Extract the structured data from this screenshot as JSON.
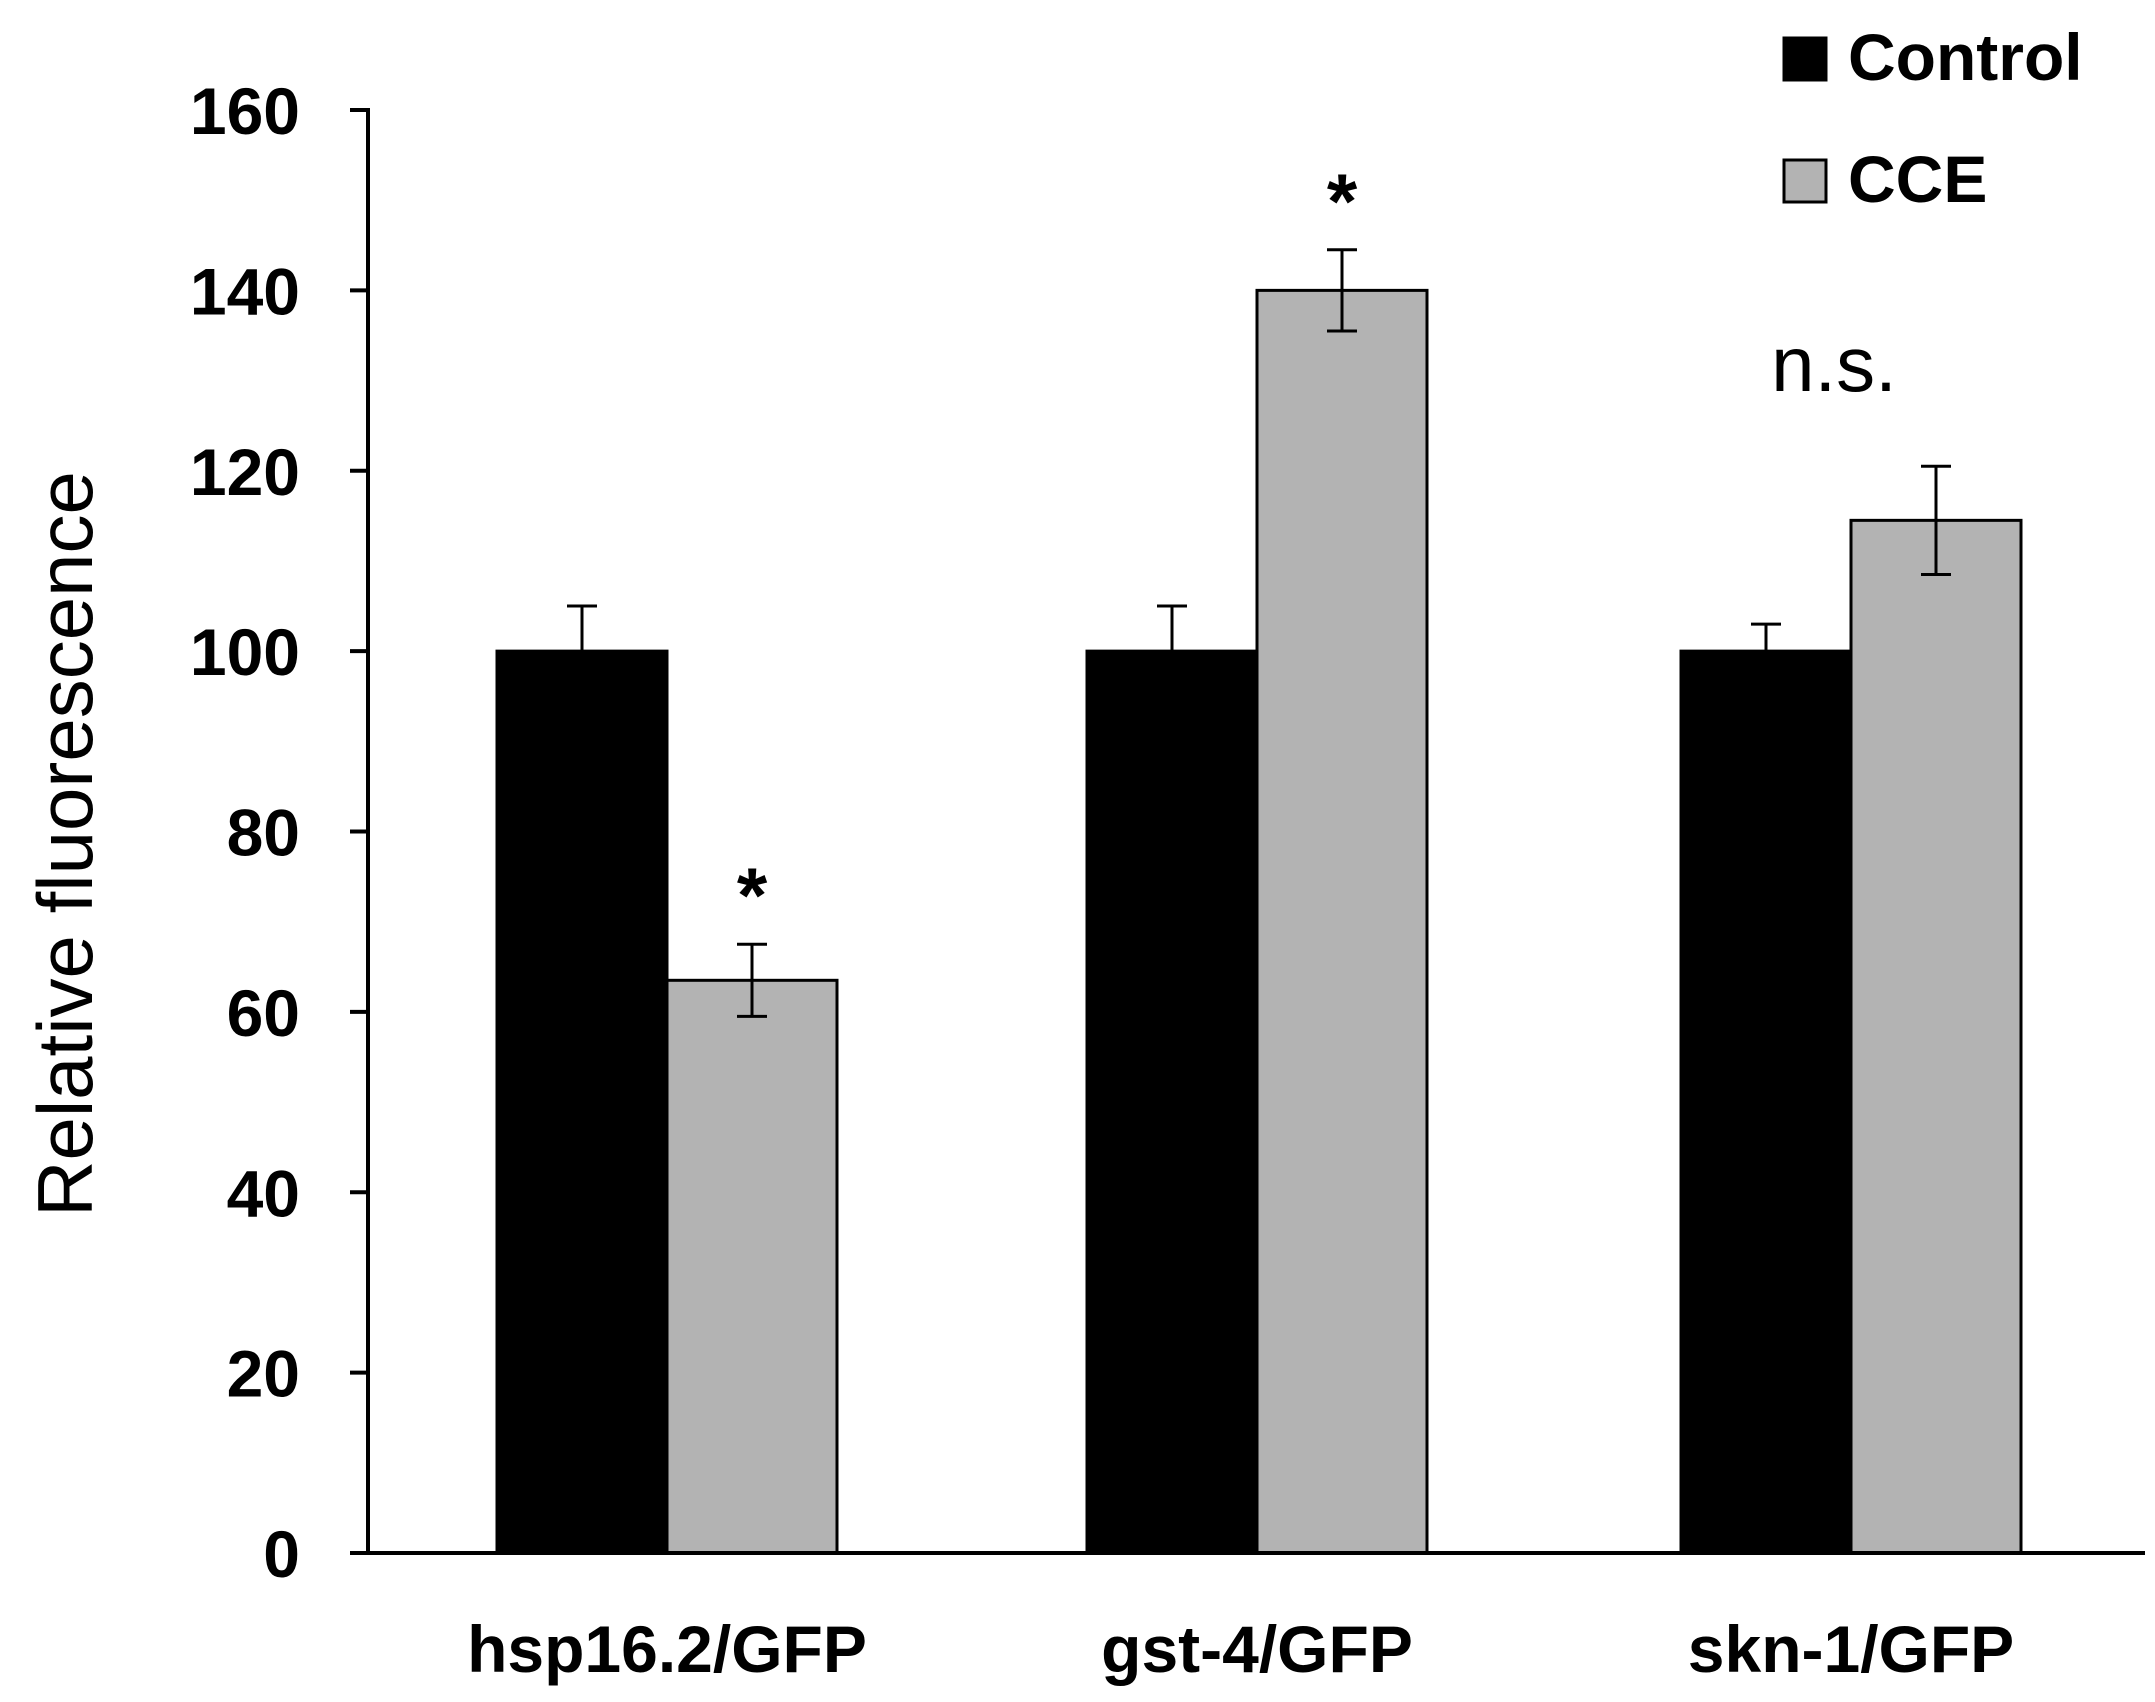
{
  "colors": {
    "control": "#000000",
    "cce": "#b3b3b3",
    "axis": "#000000",
    "error": "#000000"
  },
  "chart_data": {
    "type": "bar",
    "title": "",
    "xlabel": "",
    "ylabel": "Relative fluorescence",
    "ylim": [
      0,
      160
    ],
    "yticks": [
      0,
      20,
      40,
      60,
      80,
      100,
      120,
      140,
      160
    ],
    "grid": false,
    "legend_position": "top-right",
    "categories": [
      "hsp16.2/GFP",
      "gst-4/GFP",
      "skn-1/GFP"
    ],
    "series": [
      {
        "name": "Control",
        "values": [
          100,
          100,
          100
        ],
        "errors": [
          5,
          5,
          3
        ]
      },
      {
        "name": "CCE",
        "values": [
          63.5,
          140,
          114.5
        ],
        "errors": [
          4,
          4.5,
          6
        ]
      }
    ],
    "annotations": [
      {
        "category_index": 0,
        "series_index": 1,
        "text": "*",
        "style": "star"
      },
      {
        "category_index": 1,
        "series_index": 1,
        "text": "*",
        "style": "star"
      },
      {
        "category_index": 2,
        "series_index": 1,
        "text": "n.s.",
        "style": "ns"
      }
    ]
  }
}
